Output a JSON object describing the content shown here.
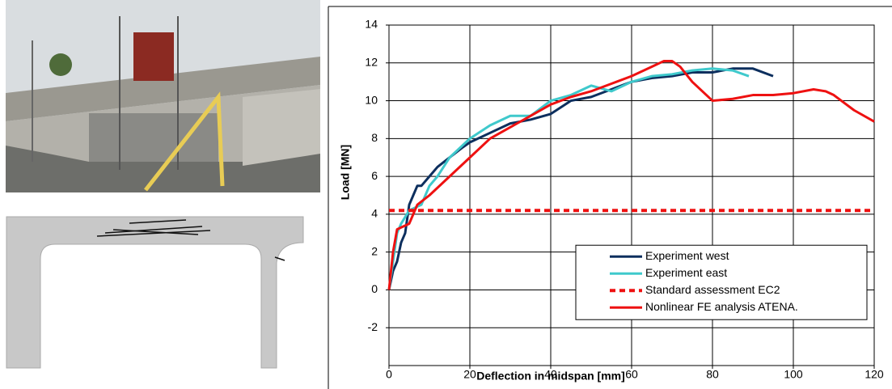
{
  "chart_data": {
    "type": "line",
    "xlabel": "Deflection in midspan [mm]",
    "ylabel": "Load [MN]",
    "xlim": [
      0,
      120
    ],
    "xticks": [
      0,
      20,
      40,
      60,
      80,
      100,
      120
    ],
    "ylim": [
      -4,
      14
    ],
    "yticks": [
      -2,
      0,
      2,
      4,
      6,
      8,
      10,
      12,
      14
    ],
    "grid": true,
    "legend": "lower right",
    "series": [
      {
        "name": "Experiment west",
        "color": "#0d2f5e",
        "style": "solid",
        "x": [
          0,
          1,
          2,
          3,
          4,
          5,
          6,
          7,
          8,
          10,
          12,
          15,
          18,
          20,
          25,
          30,
          35,
          40,
          45,
          50,
          55,
          60,
          65,
          70,
          75,
          80,
          85,
          90,
          95
        ],
        "values": [
          0,
          1,
          1.5,
          2.5,
          3,
          4.5,
          5,
          5.5,
          5.5,
          6,
          6.5,
          7,
          7.5,
          7.8,
          8.3,
          8.8,
          9,
          9.3,
          10,
          10.2,
          10.6,
          11,
          11.2,
          11.3,
          11.5,
          11.5,
          11.7,
          11.7,
          11.3
        ]
      },
      {
        "name": "Experiment east",
        "color": "#3fc9cc",
        "style": "solid",
        "x": [
          0,
          1,
          2,
          3,
          5,
          8,
          10,
          12,
          15,
          20,
          25,
          30,
          35,
          40,
          45,
          50,
          55,
          60,
          65,
          70,
          75,
          80,
          85,
          89
        ],
        "values": [
          0,
          1.5,
          3,
          3.5,
          4.2,
          4.5,
          5.5,
          6,
          7,
          8,
          8.7,
          9.2,
          9.2,
          10,
          10.3,
          10.8,
          10.5,
          11,
          11.3,
          11.4,
          11.6,
          11.7,
          11.6,
          11.3
        ]
      },
      {
        "name": "Standard assessment EC2",
        "color": "#ee1111",
        "style": "dashed",
        "x": [
          0,
          120
        ],
        "values": [
          4.2,
          4.2
        ]
      },
      {
        "name": "Nonlinear FE analysis ATENA.",
        "color": "#ee1111",
        "style": "solid",
        "x": [
          0,
          1,
          2,
          3,
          5,
          7,
          10,
          15,
          20,
          25,
          30,
          35,
          40,
          45,
          50,
          55,
          60,
          65,
          68,
          70,
          72,
          75,
          80,
          85,
          90,
          95,
          100,
          105,
          108,
          110,
          115,
          120
        ],
        "values": [
          0,
          2,
          3.2,
          3.3,
          3.5,
          4.5,
          5,
          6,
          7,
          8,
          8.6,
          9.2,
          9.8,
          10.2,
          10.5,
          10.9,
          11.3,
          11.8,
          12.1,
          12.1,
          11.8,
          11,
          10,
          10.1,
          10.3,
          10.3,
          10.4,
          10.6,
          10.5,
          10.3,
          9.5,
          8.9
        ]
      }
    ]
  }
}
